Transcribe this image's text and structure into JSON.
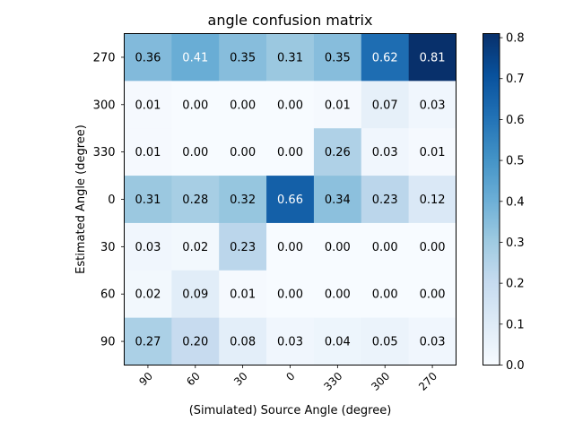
{
  "chart_data": {
    "type": "heatmap",
    "title": "angle confusion matrix",
    "xlabel": "(Simulated) Source Angle (degree)",
    "ylabel": "Estimated Angle (degree)",
    "x_categories": [
      "90",
      "60",
      "30",
      "0",
      "330",
      "300",
      "270"
    ],
    "y_categories": [
      "270",
      "300",
      "330",
      "0",
      "30",
      "60",
      "90"
    ],
    "values": [
      [
        0.36,
        0.41,
        0.35,
        0.31,
        0.35,
        0.62,
        0.81
      ],
      [
        0.01,
        0.0,
        0.0,
        0.0,
        0.01,
        0.07,
        0.03
      ],
      [
        0.01,
        0.0,
        0.0,
        0.0,
        0.26,
        0.03,
        0.01
      ],
      [
        0.31,
        0.28,
        0.32,
        0.66,
        0.34,
        0.23,
        0.12
      ],
      [
        0.03,
        0.02,
        0.23,
        0.0,
        0.0,
        0.0,
        0.0
      ],
      [
        0.02,
        0.09,
        0.01,
        0.0,
        0.0,
        0.0,
        0.0
      ],
      [
        0.27,
        0.2,
        0.08,
        0.03,
        0.04,
        0.05,
        0.03
      ]
    ],
    "value_format": "0.00",
    "colormap": "Blues",
    "colorbar": {
      "range": [
        0.0,
        0.81
      ],
      "ticks": [
        0.0,
        0.1,
        0.2,
        0.3,
        0.4,
        0.5,
        0.6,
        0.7,
        0.8
      ],
      "tick_labels": [
        "0.0",
        "0.1",
        "0.2",
        "0.3",
        "0.4",
        "0.5",
        "0.6",
        "0.7",
        "0.8"
      ]
    },
    "colors": {
      "text_dark": "#000000",
      "text_light": "#ffffff"
    }
  }
}
